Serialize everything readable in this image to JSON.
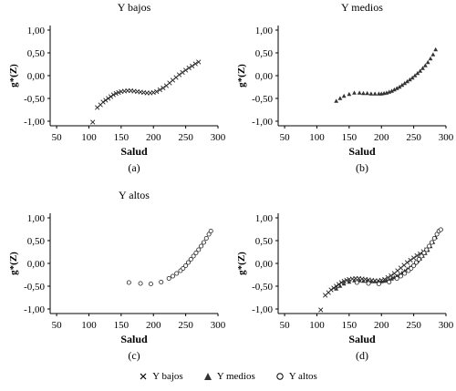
{
  "chart_data": [
    {
      "type": "scatter",
      "title": "Y bajos",
      "sublabel": "(a)",
      "xlabel": "Salud",
      "ylabel": "g*(Z)",
      "xlim": [
        40,
        300
      ],
      "ylim": [
        -1.1,
        1.1
      ],
      "xticks": [
        50,
        100,
        150,
        200,
        250,
        300
      ],
      "yticks": [
        1.0,
        0.5,
        0.0,
        -0.5,
        -1.0
      ],
      "ytick_labels": [
        "1,00",
        "0,50",
        "0,00",
        "-0,50",
        "-1,00"
      ],
      "grid": false,
      "series": [
        {
          "name": "Y bajos",
          "marker": "x",
          "color": "#222222",
          "x": [
            106,
            113,
            118,
            122,
            126,
            130,
            134,
            138,
            142,
            146,
            150,
            155,
            160,
            165,
            170,
            175,
            180,
            185,
            190,
            195,
            200,
            205,
            210,
            215,
            220,
            225,
            230,
            235,
            240,
            245,
            250,
            255,
            260,
            265,
            270
          ],
          "y": [
            -1.02,
            -0.7,
            -0.64,
            -0.58,
            -0.54,
            -0.5,
            -0.46,
            -0.42,
            -0.39,
            -0.37,
            -0.35,
            -0.34,
            -0.33,
            -0.33,
            -0.34,
            -0.35,
            -0.36,
            -0.37,
            -0.38,
            -0.38,
            -0.37,
            -0.35,
            -0.31,
            -0.27,
            -0.22,
            -0.16,
            -0.1,
            -0.04,
            0.02,
            0.07,
            0.12,
            0.17,
            0.21,
            0.26,
            0.3
          ]
        }
      ]
    },
    {
      "type": "scatter",
      "title": "Y medios",
      "sublabel": "(b)",
      "xlabel": "Salud",
      "ylabel": "g*(Z)",
      "xlim": [
        40,
        300
      ],
      "ylim": [
        -1.1,
        1.1
      ],
      "xticks": [
        50,
        100,
        150,
        200,
        250,
        300
      ],
      "yticks": [
        1.0,
        0.5,
        0.0,
        -0.5,
        -1.0
      ],
      "ytick_labels": [
        "1,00",
        "0,50",
        "0,00",
        "-0,50",
        "-1,00"
      ],
      "grid": false,
      "series": [
        {
          "name": "Y medios",
          "marker": "triangle",
          "color": "#222222",
          "x": [
            130,
            136,
            142,
            150,
            158,
            166,
            172,
            178,
            184,
            190,
            196,
            200,
            204,
            208,
            212,
            216,
            220,
            224,
            228,
            232,
            236,
            240,
            244,
            248,
            252,
            256,
            260,
            264,
            268,
            272,
            276,
            280,
            284
          ],
          "y": [
            -0.56,
            -0.5,
            -0.45,
            -0.41,
            -0.38,
            -0.38,
            -0.39,
            -0.39,
            -0.4,
            -0.4,
            -0.4,
            -0.4,
            -0.39,
            -0.38,
            -0.36,
            -0.34,
            -0.31,
            -0.28,
            -0.25,
            -0.21,
            -0.17,
            -0.13,
            -0.09,
            -0.05,
            0.0,
            0.05,
            0.1,
            0.16,
            0.22,
            0.29,
            0.37,
            0.46,
            0.57
          ]
        }
      ]
    },
    {
      "type": "scatter",
      "title": "Y altos",
      "sublabel": "(c)",
      "xlabel": "Salud",
      "ylabel": "g*(Z)",
      "xlim": [
        40,
        300
      ],
      "ylim": [
        -1.1,
        1.1
      ],
      "xticks": [
        50,
        100,
        150,
        200,
        250,
        300
      ],
      "yticks": [
        1.0,
        0.5,
        0.0,
        -0.5,
        -1.0
      ],
      "ytick_labels": [
        "1,00",
        "0,50",
        "0,00",
        "-0,50",
        "-1,00"
      ],
      "grid": false,
      "series": [
        {
          "name": "Y altos",
          "marker": "circle",
          "color": "#222222",
          "x": [
            162,
            180,
            196,
            212,
            224,
            230,
            236,
            242,
            246,
            250,
            254,
            258,
            262,
            266,
            270,
            274,
            278,
            282,
            286,
            289
          ],
          "y": [
            -0.42,
            -0.44,
            -0.45,
            -0.41,
            -0.33,
            -0.28,
            -0.22,
            -0.16,
            -0.11,
            -0.05,
            0.02,
            0.09,
            0.16,
            0.23,
            0.3,
            0.38,
            0.46,
            0.55,
            0.64,
            0.71
          ]
        }
      ]
    },
    {
      "type": "scatter",
      "title": "",
      "sublabel": "(d)",
      "xlabel": "Salud",
      "ylabel": "g*(Z)",
      "xlim": [
        40,
        300
      ],
      "ylim": [
        -1.1,
        1.1
      ],
      "xticks": [
        50,
        100,
        150,
        200,
        250,
        300
      ],
      "yticks": [
        1.0,
        0.5,
        0.0,
        -0.5,
        -1.0
      ],
      "ytick_labels": [
        "1,00",
        "0,50",
        "0,00",
        "-0,50",
        "-1,00"
      ],
      "grid": false,
      "series": [
        {
          "name": "Y bajos",
          "marker": "x",
          "color": "#222222",
          "x": [
            106,
            113,
            118,
            122,
            126,
            130,
            134,
            138,
            142,
            146,
            150,
            155,
            160,
            165,
            170,
            175,
            180,
            185,
            190,
            195,
            200,
            205,
            210,
            215,
            220,
            225,
            230,
            235,
            240,
            245,
            250,
            255,
            260,
            265,
            270
          ],
          "y": [
            -1.02,
            -0.7,
            -0.64,
            -0.58,
            -0.54,
            -0.5,
            -0.46,
            -0.42,
            -0.39,
            -0.37,
            -0.35,
            -0.34,
            -0.33,
            -0.33,
            -0.34,
            -0.35,
            -0.36,
            -0.37,
            -0.38,
            -0.38,
            -0.37,
            -0.35,
            -0.31,
            -0.27,
            -0.22,
            -0.16,
            -0.1,
            -0.04,
            0.02,
            0.07,
            0.12,
            0.17,
            0.21,
            0.26,
            0.3
          ]
        },
        {
          "name": "Y medios",
          "marker": "triangle",
          "color": "#222222",
          "x": [
            130,
            136,
            142,
            150,
            158,
            166,
            172,
            178,
            184,
            190,
            196,
            200,
            204,
            208,
            212,
            216,
            220,
            224,
            228,
            232,
            236,
            240,
            244,
            248,
            252,
            256,
            260,
            264,
            268,
            272,
            276,
            280,
            284
          ],
          "y": [
            -0.56,
            -0.5,
            -0.45,
            -0.41,
            -0.38,
            -0.38,
            -0.39,
            -0.39,
            -0.4,
            -0.4,
            -0.4,
            -0.4,
            -0.39,
            -0.38,
            -0.36,
            -0.34,
            -0.31,
            -0.28,
            -0.25,
            -0.21,
            -0.17,
            -0.13,
            -0.09,
            -0.05,
            0.0,
            0.05,
            0.1,
            0.16,
            0.22,
            0.29,
            0.37,
            0.46,
            0.57
          ]
        },
        {
          "name": "Y altos",
          "marker": "circle",
          "color": "#222222",
          "x": [
            162,
            180,
            196,
            212,
            224,
            230,
            236,
            242,
            246,
            250,
            254,
            258,
            262,
            266,
            270,
            274,
            278,
            282,
            286,
            289,
            292
          ],
          "y": [
            -0.42,
            -0.44,
            -0.45,
            -0.41,
            -0.33,
            -0.28,
            -0.22,
            -0.16,
            -0.11,
            -0.05,
            0.02,
            0.09,
            0.16,
            0.23,
            0.3,
            0.38,
            0.46,
            0.55,
            0.64,
            0.71,
            0.74
          ]
        }
      ]
    }
  ],
  "legend": {
    "items": [
      {
        "label": "Y bajos",
        "marker": "x"
      },
      {
        "label": "Y medios",
        "marker": "triangle"
      },
      {
        "label": "Y altos",
        "marker": "circle"
      }
    ]
  }
}
